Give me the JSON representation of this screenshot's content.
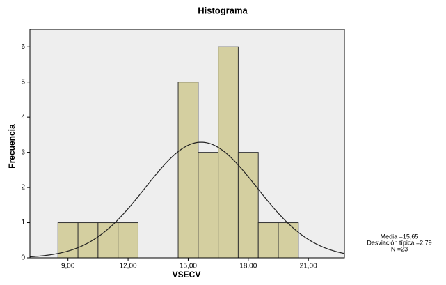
{
  "chart_data": {
    "type": "histogram",
    "title": "Histograma",
    "x_label": "VSECV",
    "y_label": "Frecuencia",
    "bins": [
      8.5,
      9.5,
      10.5,
      11.5,
      12.5,
      13.5,
      14.5,
      15.5,
      16.5,
      17.5,
      18.5,
      19.5,
      20.5
    ],
    "values": [
      1,
      1,
      1,
      1,
      0,
      0,
      5,
      3,
      6,
      3,
      1,
      1
    ],
    "color": "#d4cfa0",
    "curve_color": "#222222",
    "plot_background": "#eeeeee",
    "xlim": [
      7.1,
      22.8
    ],
    "xticks": [
      {
        "value": 9,
        "label": "9,00"
      },
      {
        "value": 12,
        "label": "12,00"
      },
      {
        "value": 15,
        "label": "15,00"
      },
      {
        "value": 18,
        "label": "18,00"
      },
      {
        "value": 21,
        "label": "21,00"
      }
    ],
    "ylim": [
      0,
      6.5
    ],
    "yticks": [
      0,
      1,
      2,
      3,
      4,
      5,
      6
    ],
    "stats": [
      {
        "value": 15.65,
        "label": "Media =15,65"
      },
      {
        "value": 2.79,
        "label": "Desviación típica =2,79"
      },
      {
        "value": 23,
        "label": "N =23"
      }
    ]
  }
}
